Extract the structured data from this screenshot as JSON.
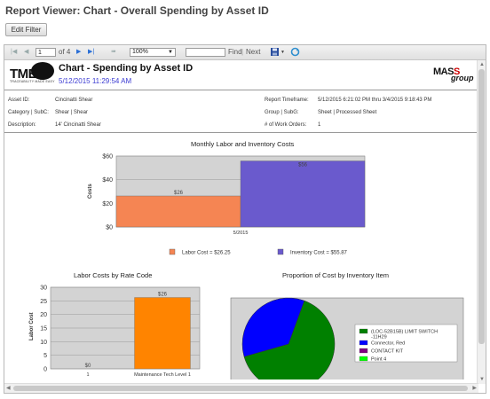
{
  "window": {
    "title": "Report Viewer: Chart - Overall Spending by Asset ID"
  },
  "edit_filter_label": "Edit Filter",
  "toolbar": {
    "page_value": "1",
    "page_of": "of 4",
    "zoom": "100%",
    "find_value": "",
    "find_label": "Find",
    "separator": "|",
    "next_label": "Next",
    "first_icon": "first-page-icon",
    "prev_icon": "previous-page-icon",
    "next_icon": "next-page-icon",
    "last_icon": "last-page-icon",
    "back_icon": "back-icon",
    "export_icon": "save-export-icon",
    "refresh_icon": "refresh-icon"
  },
  "header": {
    "logo_left": "TME",
    "logo_tagline": "TRACEABILITY MADE EASY",
    "title": "Chart - Spending by Asset ID",
    "date": "5/12/2015 11:29:54 AM",
    "logo_right_a": "MAS",
    "logo_right_b": "S",
    "logo_right_c": "group"
  },
  "meta": {
    "asset_id_label": "Asset ID:",
    "asset_id": "Cincinatti Shear",
    "category_label": "Category | SubC:",
    "category": "Shear | Shear",
    "description_label": "Description:",
    "description": "14' Cincinatti Shear",
    "timeframe_label": "Report Timeframe:",
    "timeframe": "5/12/2015 6:21:02 PM thru 3/4/2015 9:18:43 PM",
    "group_label": "Group | SubG:",
    "group": "Sheet | Processed Sheet",
    "work_orders_label": "# of Work Orders:",
    "work_orders": "1"
  },
  "colors": {
    "labor": "#f58553",
    "inventory": "#6a5acd",
    "rate_bar": "#ff8400",
    "plot_bg": "#d3d3d3",
    "pie_green": "#008000",
    "pie_blue": "#0000ff",
    "pie_purple": "#800080",
    "pie_lime": "#00ff00"
  },
  "chart_data": [
    {
      "type": "bar",
      "title": "Monthly Labor and Inventory Costs",
      "ylabel": "Costs",
      "categories": [
        "5/2015"
      ],
      "series": [
        {
          "name": "Labor Cost = $26.25",
          "values": [
            26.25
          ],
          "label": "$26"
        },
        {
          "name": "Inventory Cost = $55.87",
          "values": [
            55.87
          ],
          "label": "$56"
        }
      ],
      "yticks": [
        "$0",
        "$20",
        "$40",
        "$60"
      ],
      "ylim": [
        0,
        60
      ],
      "legend": "bottom",
      "grid": true
    },
    {
      "type": "bar",
      "title": "Labor Costs by Rate Code",
      "ylabel": "Labor Cost",
      "categories": [
        "1",
        "Maintenance Tech Level 1"
      ],
      "values": [
        0,
        26.25
      ],
      "labels": [
        "$0",
        "$26"
      ],
      "yticks": [
        "0",
        "5",
        "10",
        "15",
        "20",
        "25",
        "30"
      ],
      "ylim": [
        0,
        30
      ],
      "grid": true
    },
    {
      "type": "pie",
      "title": "Proportion of Cost by Inventory Item",
      "slices": [
        {
          "name": "(LOC-52B15B) LIMIT SWITCH -11H29",
          "value": 65
        },
        {
          "name": "Connector, Red",
          "value": 35
        },
        {
          "name": "CONTACT KIT",
          "value": 0
        },
        {
          "name": "Point 4",
          "value": 0
        }
      ],
      "legend": "right"
    }
  ]
}
